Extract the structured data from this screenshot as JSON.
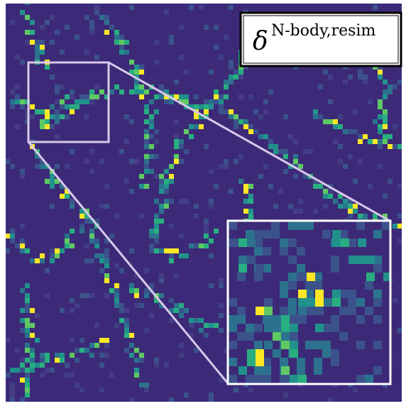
{
  "label": {
    "symbol": "δ",
    "superscript": "N-body,resim"
  }
}
